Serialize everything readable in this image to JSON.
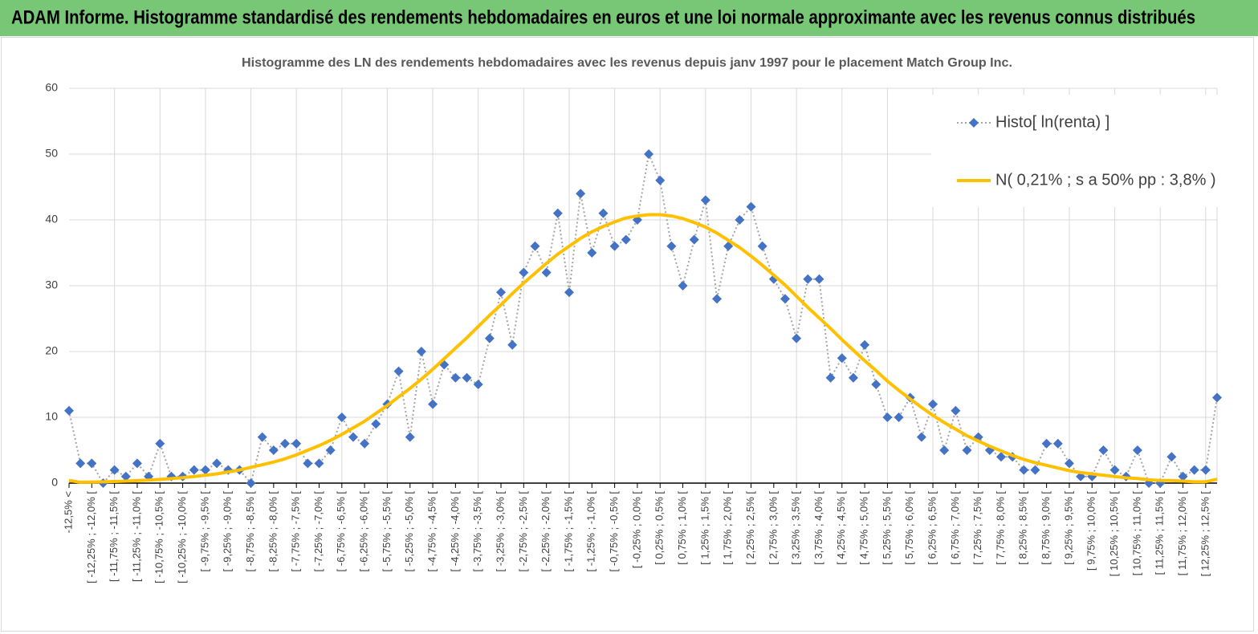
{
  "header": {
    "title": "ADAM Informe. Histogramme standardisé des rendements hebdomadaires en euros et une loi normale approximante avec les revenus connus distribués"
  },
  "chart_data": {
    "type": "line",
    "title": "Histogramme  des LN des rendements hebdomadaires avec les revenus depuis janv 1997 pour le placement Match Group Inc.",
    "categories": [
      "-12,5% <",
      null,
      "[ -12,25% ; -12,0% [",
      null,
      "[ -11,75% ; -11,5% [",
      null,
      "[ -11,25% ; -11,0% [",
      null,
      "[ -10,75% ; -10,5% [",
      null,
      "[ -10,25% ; -10,0% [",
      null,
      "[ -9,75% ; -9,5% [",
      null,
      "[ -9,25% ; -9,0% [",
      null,
      "[ -8,75% ; -8,5% [",
      null,
      "[ -8,25% ; -8,0% [",
      null,
      "[ -7,75% ; -7,5% [",
      null,
      "[ -7,25% ; -7,0% [",
      null,
      "[ -6,75% ; -6,5% [",
      null,
      "[ -6,25% ; -6,0% [",
      null,
      "[ -5,75% ; -5,5% [",
      null,
      "[ -5,25% ; -5,0% [",
      null,
      "[ -4,75% ; -4,5% [",
      null,
      "[ -4,25% ; -4,0% [",
      null,
      "[ -3,75% ; -3,5% [",
      null,
      "[ -3,25% ; -3,0% [",
      null,
      "[ -2,75% ; -2,5% [",
      null,
      "[ -2,25% ; -2,0% [",
      null,
      "[ -1,75% ; -1,5% [",
      null,
      "[ -1,25% ; -1,0% [",
      null,
      "[ -0,75% ; -0,5% [",
      null,
      "[ -0,25% ; 0,0% [",
      null,
      "[ 0,25% ; 0,5% [",
      null,
      "[ 0,75% ; 1,0% [",
      null,
      "[ 1,25% ; 1,5% [",
      null,
      "[ 1,75% ; 2,0% [",
      null,
      "[ 2,25% ; 2,5% [",
      null,
      "[ 2,75% ; 3,0% [",
      null,
      "[ 3,25% ; 3,5% [",
      null,
      "[ 3,75% ; 4,0% [",
      null,
      "[ 4,25% ; 4,5% [",
      null,
      "[ 4,75% ; 5,0% [",
      null,
      "[ 5,25% ; 5,5% [",
      null,
      "[ 5,75% ; 6,0% [",
      null,
      "[ 6,25% ; 6,5% [",
      null,
      "[ 6,75% ; 7,0% [",
      null,
      "[ 7,25% ; 7,5% [",
      null,
      "[ 7,75% ; 8,0% [",
      null,
      "[ 8,25% ; 8,5% [",
      null,
      "[ 8,75% ; 9,0% [",
      null,
      "[ 9,25% ; 9,5% [",
      null,
      "[ 9,75% ; 10,0% [",
      null,
      "[ 10,25% ; 10,5% [",
      null,
      "[ 10,75% ; 11,0% [",
      null,
      "[ 11,25% ; 11,5% [",
      null,
      "[ 11,75% ; 12,0% [",
      null,
      "[ 12,25% ; 12,5% [",
      null
    ],
    "series": [
      {
        "name": "Histo[ ln(renta) ]",
        "color": "#4472c4",
        "line_color": "#a5a5a5",
        "marker": "diamond",
        "dash": "dotted",
        "values": [
          11,
          3,
          3,
          0,
          2,
          1,
          3,
          1,
          6,
          1,
          1,
          2,
          2,
          3,
          2,
          2,
          0,
          7,
          5,
          6,
          6,
          3,
          3,
          5,
          10,
          7,
          6,
          9,
          12,
          17,
          7,
          20,
          12,
          18,
          16,
          16,
          15,
          22,
          29,
          21,
          32,
          36,
          32,
          41,
          29,
          44,
          35,
          41,
          36,
          37,
          40,
          50,
          46,
          36,
          30,
          37,
          43,
          28,
          36,
          40,
          42,
          36,
          31,
          28,
          22,
          31,
          31,
          16,
          19,
          16,
          21,
          15,
          10,
          10,
          13,
          7,
          12,
          5,
          11,
          5,
          7,
          5,
          4,
          4,
          2,
          2,
          6,
          6,
          3,
          1,
          1,
          5,
          2,
          1,
          5,
          0,
          0,
          4,
          1,
          2,
          2,
          13
        ]
      },
      {
        "name": "N( 0,21% ; s a 50% pp : 3,8% )",
        "color": "#ffc000",
        "marker": "none",
        "dash": "solid",
        "values": [
          0.4,
          0.13,
          0.16,
          0.2,
          0.25,
          0.31,
          0.38,
          0.46,
          0.56,
          0.68,
          0.83,
          1.0,
          1.2,
          1.4,
          1.7,
          2.0,
          2.4,
          2.8,
          3.2,
          3.7,
          4.3,
          5.0,
          5.7,
          6.5,
          7.4,
          8.4,
          9.4,
          10.6,
          11.8,
          13.1,
          14.4,
          15.8,
          17.3,
          18.9,
          20.5,
          22.1,
          23.8,
          25.5,
          27.1,
          28.8,
          30.4,
          31.9,
          33.4,
          34.8,
          36.0,
          37.2,
          38.2,
          39.0,
          39.7,
          40.3,
          40.6,
          40.8,
          40.8,
          40.6,
          40.2,
          39.6,
          38.9,
          38.0,
          36.9,
          35.8,
          34.5,
          33.1,
          31.6,
          30.1,
          28.4,
          26.7,
          25.1,
          23.5,
          21.8,
          20.2,
          18.6,
          17.1,
          15.5,
          14.1,
          12.8,
          11.5,
          10.3,
          9.2,
          8.2,
          7.2,
          6.4,
          5.6,
          4.9,
          4.2,
          3.6,
          3.1,
          2.7,
          2.3,
          1.9,
          1.6,
          1.4,
          1.2,
          1.0,
          0.8,
          0.7,
          0.5,
          0.4,
          0.4,
          0.3,
          0.2,
          0.2,
          0.6
        ]
      }
    ],
    "ylim": [
      0,
      60
    ],
    "yticks": [
      0,
      10,
      20,
      30,
      40,
      50,
      60
    ],
    "grid": true,
    "legend": "top-right"
  }
}
